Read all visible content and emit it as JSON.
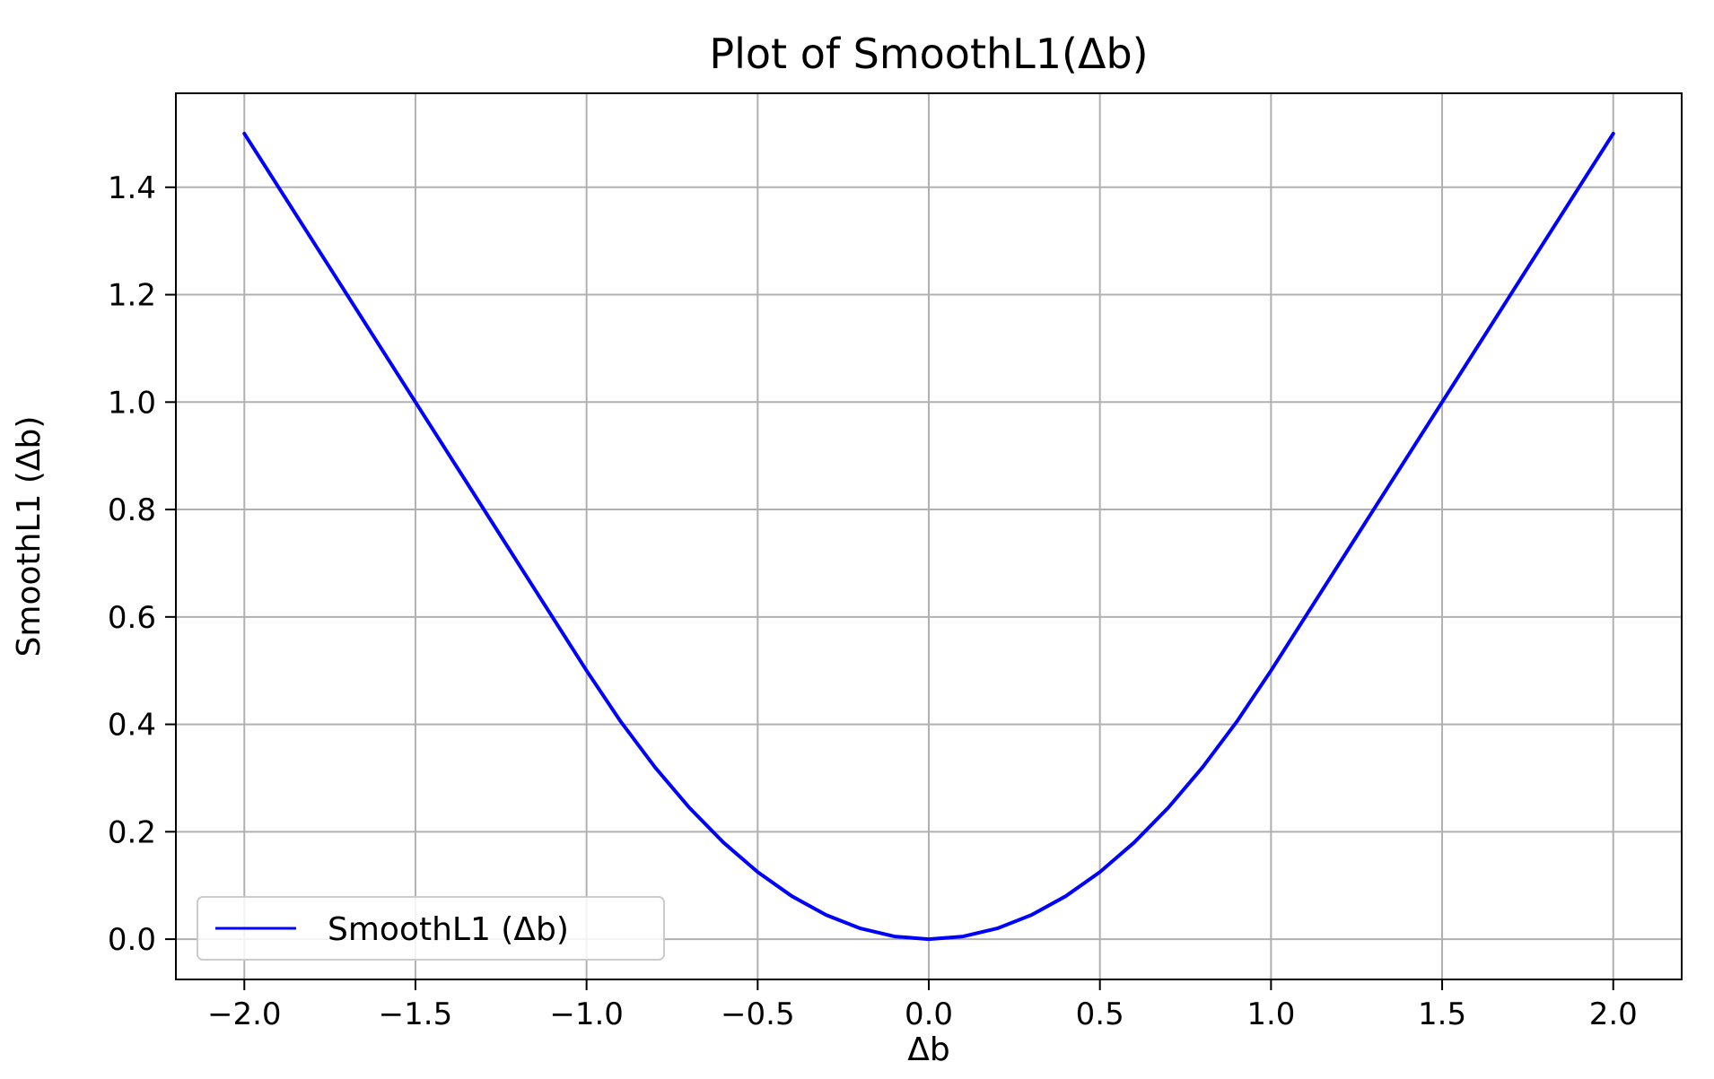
{
  "chart_data": {
    "type": "line",
    "title": "Plot of SmoothL1(Δb)",
    "xlabel": "Δb",
    "ylabel": "SmoothL1 (Δb)",
    "xlim": [
      -2.2,
      2.2
    ],
    "ylim": [
      -0.075,
      1.575
    ],
    "grid": true,
    "legend_position": "lower-left",
    "xticks": [
      -2.0,
      -1.5,
      -1.0,
      -0.5,
      0.0,
      0.5,
      1.0,
      1.5,
      2.0
    ],
    "xtick_labels": [
      "−2.0",
      "−1.5",
      "−1.0",
      "−0.5",
      "0.0",
      "0.5",
      "1.0",
      "1.5",
      "2.0"
    ],
    "yticks": [
      0.0,
      0.2,
      0.4,
      0.6,
      0.8,
      1.0,
      1.2,
      1.4
    ],
    "ytick_labels": [
      "0.0",
      "0.2",
      "0.4",
      "0.6",
      "0.8",
      "1.0",
      "1.2",
      "1.4"
    ],
    "series": [
      {
        "name": "SmoothL1 (Δb)",
        "color": "#0000ff",
        "x": [
          -2.0,
          -1.75,
          -1.5,
          -1.25,
          -1.0,
          -0.9,
          -0.8,
          -0.7,
          -0.6,
          -0.5,
          -0.4,
          -0.3,
          -0.2,
          -0.1,
          0.0,
          0.1,
          0.2,
          0.3,
          0.4,
          0.5,
          0.6,
          0.7,
          0.8,
          0.9,
          1.0,
          1.25,
          1.5,
          1.75,
          2.0
        ],
        "y": [
          1.5,
          1.25,
          1.0,
          0.75,
          0.5,
          0.405,
          0.32,
          0.245,
          0.18,
          0.125,
          0.08,
          0.045,
          0.02,
          0.005,
          0.0,
          0.005,
          0.02,
          0.045,
          0.08,
          0.125,
          0.18,
          0.245,
          0.32,
          0.405,
          0.5,
          0.75,
          1.0,
          1.25,
          1.5
        ]
      }
    ]
  }
}
